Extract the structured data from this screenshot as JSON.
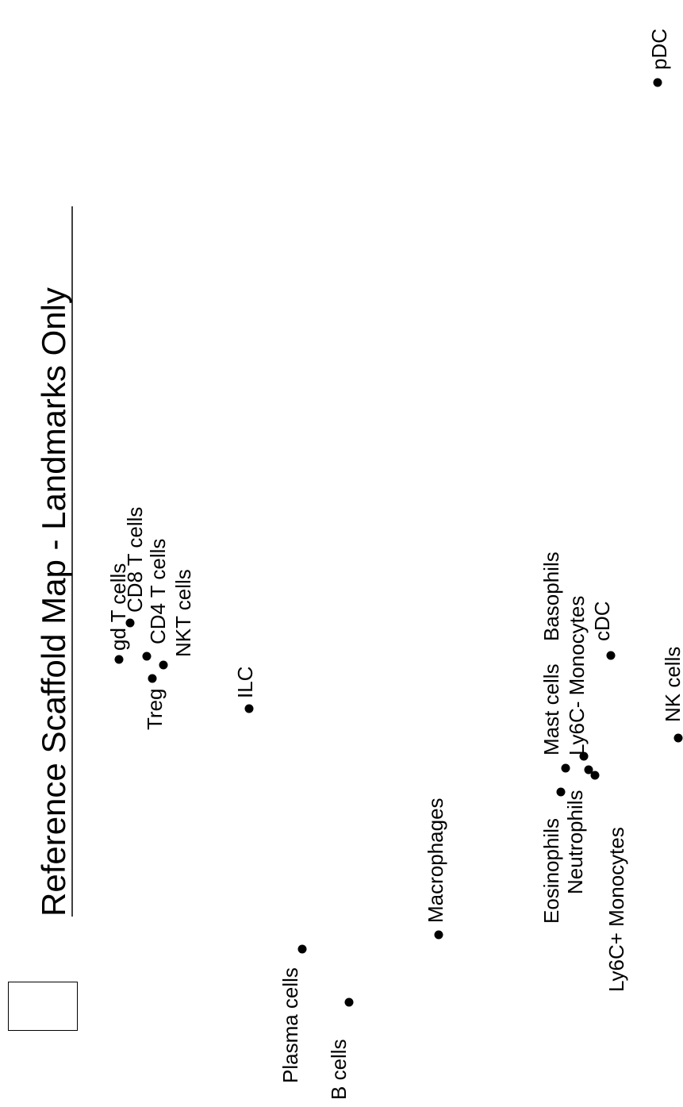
{
  "title": "Reference Scaffold Map - Landmarks Only",
  "landmarks": [
    {
      "id": "pdc",
      "label": "pDC"
    },
    {
      "id": "gd-t-cells",
      "label": "gd T cells"
    },
    {
      "id": "cd8-t-cells",
      "label": "CD8 T cells"
    },
    {
      "id": "cd4-t-cells",
      "label": "CD4 T cells"
    },
    {
      "id": "nkt-cells",
      "label": "NKT cells"
    },
    {
      "id": "treg",
      "label": "Treg"
    },
    {
      "id": "ilc",
      "label": "ILC"
    },
    {
      "id": "macrophages",
      "label": "Macrophages"
    },
    {
      "id": "mast-cells",
      "label": "Mast cells"
    },
    {
      "id": "basophils",
      "label": "Basophils"
    },
    {
      "id": "ly6c-minus-monocytes",
      "label": "Ly6C- Monocytes"
    },
    {
      "id": "cdc",
      "label": "cDC"
    },
    {
      "id": "nk-cells",
      "label": "NK cells"
    },
    {
      "id": "eosinophils",
      "label": "Eosinophils"
    },
    {
      "id": "neutrophils",
      "label": "Neutrophils"
    },
    {
      "id": "ly6c-plus-monocytes",
      "label": "Ly6C+ Monocytes"
    },
    {
      "id": "plasma-cells",
      "label": "Plasma cells"
    },
    {
      "id": "b-cells",
      "label": "B cells"
    }
  ],
  "colors": {
    "ink": "#000000",
    "background": "#ffffff"
  }
}
